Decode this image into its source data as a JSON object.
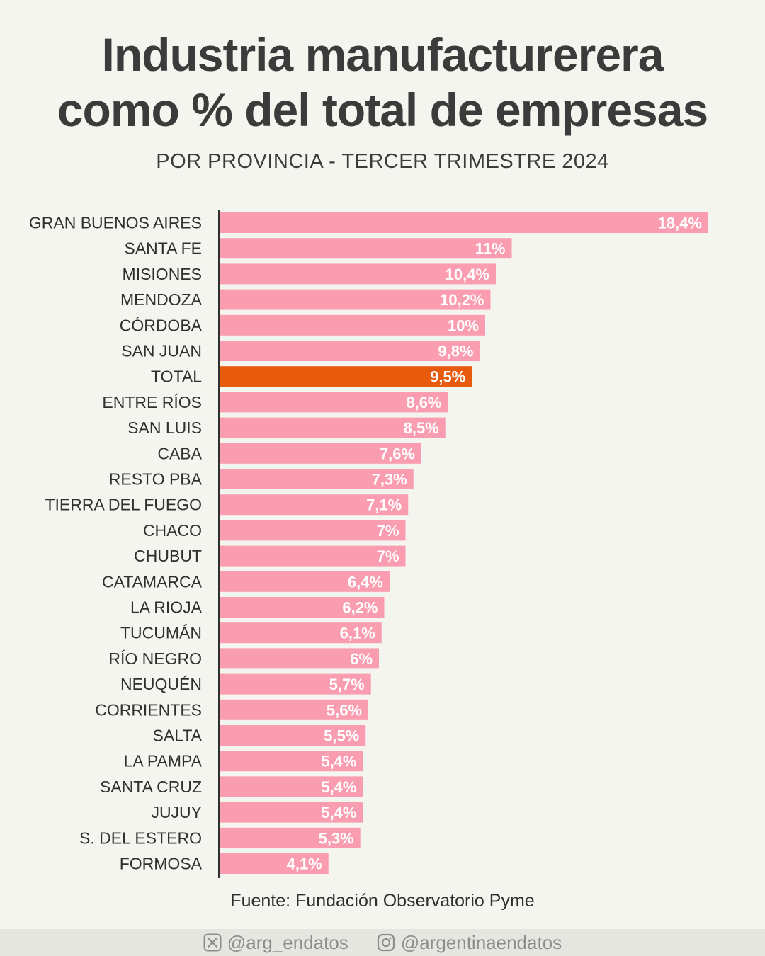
{
  "header": {
    "title_line1": "Industria manufacturerera",
    "title_line2": "como % del total de empresas",
    "subtitle": "POR PROVINCIA - TERCER TRIMESTRE 2024"
  },
  "chart_data": {
    "type": "bar",
    "orientation": "horizontal",
    "title": "Industria manufacturerera como % del total de empresas",
    "subtitle": "POR PROVINCIA - TERCER TRIMESTRE 2024",
    "categories": [
      "GRAN BUENOS AIRES",
      "SANTA FE",
      "MISIONES",
      "MENDOZA",
      "CÓRDOBA",
      "SAN JUAN",
      "TOTAL",
      "ENTRE RÍOS",
      "SAN LUIS",
      "CABA",
      "RESTO PBA",
      "TIERRA DEL FUEGO",
      "CHACO",
      "CHUBUT",
      "CATAMARCA",
      "LA RIOJA",
      "TUCUMÁN",
      "RÍO NEGRO",
      "NEUQUÉN",
      "CORRIENTES",
      "SALTA",
      "LA PAMPA",
      "SANTA CRUZ",
      "JUJUY",
      "S. DEL ESTERO",
      "FORMOSA"
    ],
    "values": [
      18.4,
      11,
      10.4,
      10.2,
      10,
      9.8,
      9.5,
      8.6,
      8.5,
      7.6,
      7.3,
      7.1,
      7,
      7,
      6.4,
      6.2,
      6.1,
      6,
      5.7,
      5.6,
      5.5,
      5.4,
      5.4,
      5.4,
      5.3,
      4.1
    ],
    "value_labels": [
      "18,4%",
      "11%",
      "10,4%",
      "10,2%",
      "10%",
      "9,8%",
      "9,5%",
      "8,6%",
      "8,5%",
      "7,6%",
      "7,3%",
      "7,1%",
      "7%",
      "7%",
      "6,4%",
      "6,2%",
      "6,1%",
      "6%",
      "5,7%",
      "5,6%",
      "5,5%",
      "5,4%",
      "5,4%",
      "5,4%",
      "5,3%",
      "4,1%"
    ],
    "highlight": "TOTAL",
    "xlim": [
      0,
      18.4
    ],
    "grid": false,
    "legend": "none",
    "colors": {
      "bar": "#fa9db0",
      "highlight": "#e85a0c",
      "axis": "#2f2f2f"
    }
  },
  "footer": {
    "source": "Fuente: Fundación Observatorio Pyme",
    "twitter_handle": "@arg_endatos",
    "instagram_handle": "@argentinaendatos",
    "twitter_icon": "x-logo-icon",
    "instagram_icon": "instagram-icon"
  }
}
